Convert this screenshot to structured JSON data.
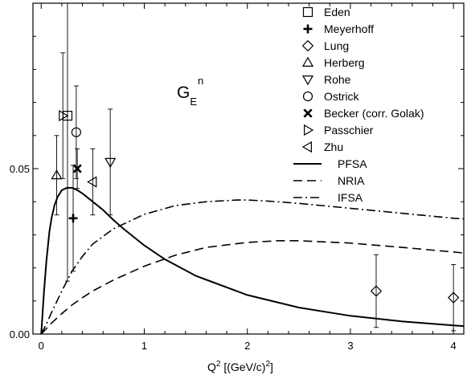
{
  "chart_data": {
    "type": "scatter",
    "xlabel": {
      "base": "Q",
      "sup": "2",
      "rest": " [(GeV/c)",
      "sup2": "2",
      "end": "]"
    },
    "ylabel": "",
    "xlim": [
      -0.08,
      4.1
    ],
    "ylim": [
      0.0,
      0.1
    ],
    "x_ticks": [
      0,
      1,
      2,
      3,
      4
    ],
    "x_tick_labels": [
      "0",
      "1",
      "2",
      "3",
      "4"
    ],
    "y_ticks": [
      0.0,
      0.05
    ],
    "y_tick_labels": [
      "0.00",
      "0.05"
    ],
    "annotation": {
      "main": "G",
      "sub": "E",
      "sup": "n"
    },
    "grid": false,
    "legend_position": "top-right",
    "data_series": [
      {
        "name": "Eden",
        "marker": "square",
        "points": [
          {
            "x": 0.255,
            "y": 0.066,
            "err": 0.05
          }
        ]
      },
      {
        "name": "Meyerhoff",
        "marker": "plus",
        "points": [
          {
            "x": 0.31,
            "y": 0.035,
            "err": 0.016
          }
        ]
      },
      {
        "name": "Lung",
        "marker": "diamond",
        "points": [
          {
            "x": 3.25,
            "y": 0.013,
            "err": 0.011
          },
          {
            "x": 4.0,
            "y": 0.011,
            "err": 0.01
          }
        ]
      },
      {
        "name": "Herberg",
        "marker": "triangle-up",
        "points": [
          {
            "x": 0.15,
            "y": 0.048,
            "err": 0.012
          }
        ]
      },
      {
        "name": "Rohe",
        "marker": "triangle-down",
        "points": [
          {
            "x": 0.67,
            "y": 0.052,
            "err": 0.016
          }
        ]
      },
      {
        "name": "Ostrick",
        "marker": "circle",
        "points": [
          {
            "x": 0.34,
            "y": 0.061,
            "err": 0.014
          }
        ]
      },
      {
        "name": "Becker (corr. Golak)",
        "marker": "cross",
        "points": [
          {
            "x": 0.35,
            "y": 0.05,
            "err": 0.006
          }
        ]
      },
      {
        "name": "Passchier",
        "marker": "triangle-right",
        "points": [
          {
            "x": 0.21,
            "y": 0.066,
            "err": 0.019
          }
        ]
      },
      {
        "name": "Zhu",
        "marker": "triangle-left",
        "points": [
          {
            "x": 0.5,
            "y": 0.046,
            "err": 0.01
          }
        ]
      }
    ],
    "curves": [
      {
        "name": "PFSA",
        "style": "solid",
        "x": [
          0.0,
          0.025,
          0.05,
          0.08,
          0.1,
          0.13,
          0.16,
          0.2,
          0.25,
          0.3,
          0.35,
          0.4,
          0.5,
          0.6,
          0.7,
          0.8,
          1.0,
          1.2,
          1.5,
          2.0,
          2.5,
          3.0,
          3.5,
          4.0,
          4.1
        ],
        "y": [
          0.0,
          0.012,
          0.022,
          0.031,
          0.035,
          0.039,
          0.0415,
          0.0435,
          0.0442,
          0.0442,
          0.0435,
          0.0425,
          0.04,
          0.0375,
          0.0345,
          0.0318,
          0.0268,
          0.0226,
          0.0176,
          0.0118,
          0.008,
          0.0055,
          0.0038,
          0.0026,
          0.0024
        ]
      },
      {
        "name": "NRIA",
        "style": "dashed",
        "x": [
          0.0,
          0.1,
          0.2,
          0.3,
          0.4,
          0.5,
          0.7,
          1.0,
          1.3,
          1.6,
          2.0,
          2.3,
          2.5,
          3.0,
          3.5,
          4.0,
          4.1
        ],
        "y": [
          0.0,
          0.0033,
          0.0062,
          0.0088,
          0.011,
          0.013,
          0.0163,
          0.0205,
          0.0238,
          0.0262,
          0.0277,
          0.0282,
          0.0282,
          0.0275,
          0.0262,
          0.0248,
          0.0245
        ]
      },
      {
        "name": "IFSA",
        "style": "dash-dot",
        "x": [
          0.0,
          0.05,
          0.1,
          0.2,
          0.3,
          0.4,
          0.5,
          0.7,
          1.0,
          1.3,
          1.6,
          1.9,
          2.0,
          2.2,
          2.5,
          3.0,
          3.5,
          4.0,
          4.1
        ],
        "y": [
          0.0,
          0.003,
          0.0065,
          0.013,
          0.019,
          0.0235,
          0.0272,
          0.0318,
          0.0362,
          0.0388,
          0.04,
          0.0405,
          0.0405,
          0.0402,
          0.0395,
          0.038,
          0.0365,
          0.035,
          0.0348
        ]
      }
    ]
  },
  "colors": {
    "axis": "#000000",
    "series": "#000000",
    "background": "#ffffff"
  }
}
